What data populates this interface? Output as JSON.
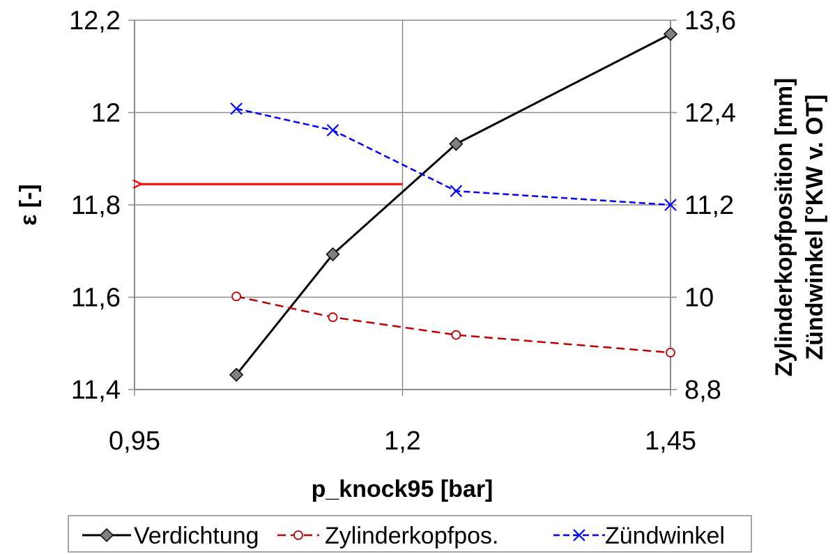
{
  "chart_data": {
    "type": "line",
    "xlabel": "p_knock95 [bar]",
    "ylabel": "ε [-]",
    "y2label_line1": "Zylinderkopfposition [mm]",
    "y2label_line2": "Zündwinkel [°KW v. OT]",
    "xlim": [
      0.95,
      1.45
    ],
    "ylim": [
      11.4,
      12.2
    ],
    "y2lim": [
      8.8,
      13.6
    ],
    "xticks": [
      "0,95",
      "1,2",
      "1,45"
    ],
    "yticks": [
      "11,4",
      "11,6",
      "11,8",
      "12",
      "12,2"
    ],
    "y2ticks": [
      "8,8",
      "10",
      "11,2",
      "12,4",
      "13,6"
    ],
    "grid": true,
    "legend_position": "bottom",
    "annotation": {
      "type": "arrow",
      "color": "#ff0000",
      "from": [
        1.2,
        11.845
      ],
      "to": [
        0.955,
        11.845
      ]
    },
    "series": [
      {
        "name": "Verdichtung",
        "axis": "left",
        "color": "#000000",
        "style": "solid",
        "marker": "diamond",
        "x": [
          1.045,
          1.135,
          1.25,
          1.45
        ],
        "y": [
          11.432,
          11.693,
          11.932,
          12.17
        ]
      },
      {
        "name": "Zylinderkopfpos.",
        "axis": "right",
        "color": "#c00000",
        "style": "dashed",
        "marker": "circle",
        "x": [
          1.045,
          1.135,
          1.25,
          1.45
        ],
        "y": [
          10.01,
          9.74,
          9.51,
          9.28
        ]
      },
      {
        "name": "Zündwinkel",
        "axis": "right",
        "color": "#0000ff",
        "style": "dashed",
        "marker": "x",
        "x": [
          1.045,
          1.135,
          1.25,
          1.45
        ],
        "y": [
          12.45,
          12.17,
          11.38,
          11.2
        ]
      }
    ]
  }
}
